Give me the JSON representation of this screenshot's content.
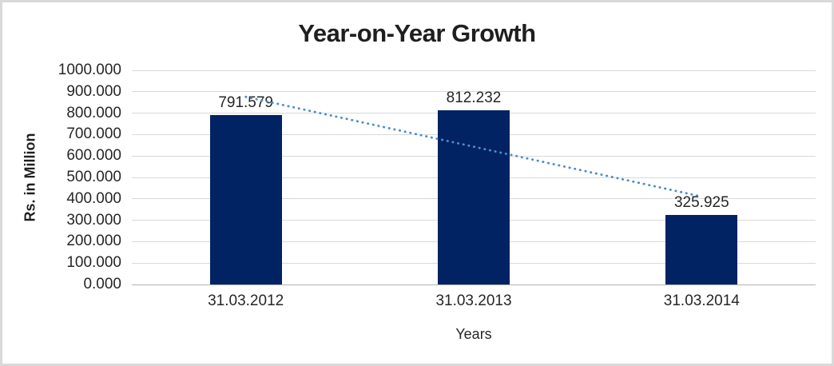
{
  "chart_data": {
    "type": "bar",
    "title": "Year-on-Year Growth",
    "xlabel": "Years",
    "ylabel": "Rs. in Million",
    "categories": [
      "31.03.2012",
      "31.03.2013",
      "31.03.2014"
    ],
    "values": [
      791.579,
      812.232,
      325.925
    ],
    "value_labels": [
      "791.579",
      "812.232",
      "325.925"
    ],
    "ylim": [
      0,
      1000
    ],
    "y_tick_step": 100,
    "y_tick_labels": [
      "0.000",
      "100.000",
      "200.000",
      "300.000",
      "400.000",
      "500.000",
      "600.000",
      "700.000",
      "800.000",
      "900.000",
      "1000.000"
    ],
    "grid": true,
    "legend": false,
    "trendline": {
      "type": "linear",
      "style": "dotted",
      "span": "first-to-last-category-center"
    },
    "colors": {
      "bar": "#012263",
      "trendline": "#4e8ccb",
      "gridline": "#d9d9d9",
      "axis_line": "#b3b3b3",
      "text": "#262626",
      "border": "#d9d9d9"
    }
  }
}
